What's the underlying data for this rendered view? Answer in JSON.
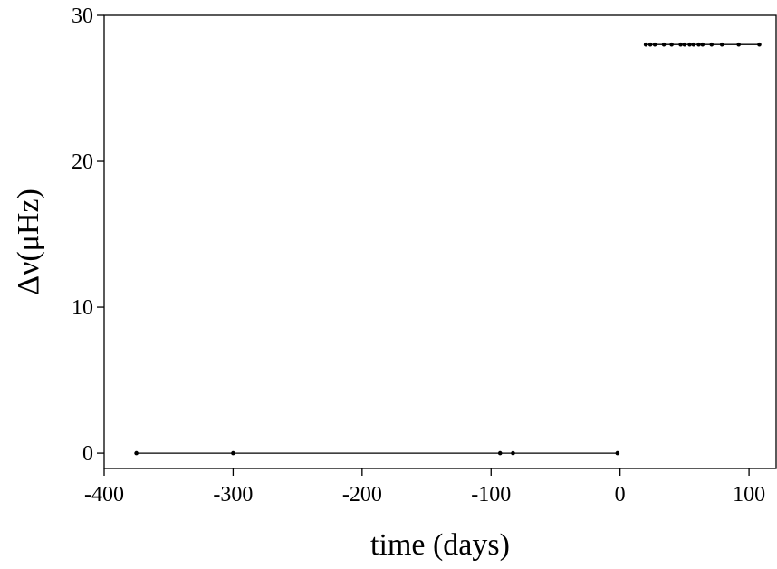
{
  "chart_data": {
    "type": "line",
    "xlabel": "time (days)",
    "ylabel": "Δν(μHz)",
    "xlim": [
      -400,
      121
    ],
    "ylim": [
      -1.05,
      30
    ],
    "xticks": [
      -400,
      -300,
      -200,
      -100,
      0,
      100
    ],
    "yticks": [
      0,
      10,
      20,
      30
    ],
    "series": [
      {
        "color": "#000000",
        "x": [
          -375,
          -300,
          -93,
          -83,
          -2
        ],
        "values": [
          0,
          0,
          0,
          0,
          0
        ]
      },
      {
        "color": "#000000",
        "x": [
          20,
          23.5,
          27,
          34,
          40,
          47,
          50,
          54,
          57,
          61,
          64,
          71,
          79,
          92,
          108
        ],
        "values": [
          28,
          28,
          28,
          28,
          28,
          28,
          28,
          28,
          28,
          28,
          28,
          28,
          28,
          28,
          28
        ]
      }
    ]
  }
}
